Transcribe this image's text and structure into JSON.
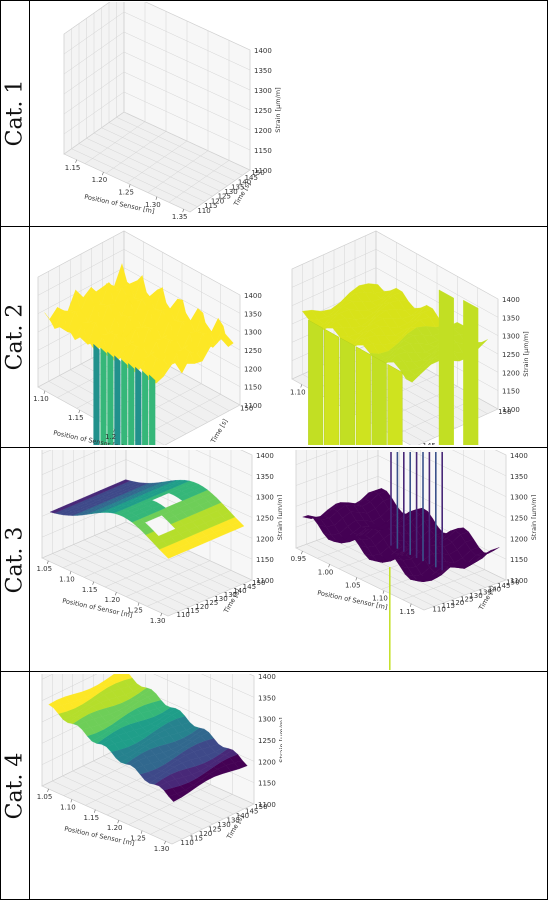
{
  "rows": [
    {
      "label": "Cat. 1"
    },
    {
      "label": "Cat. 2"
    },
    {
      "label": "Cat. 3"
    },
    {
      "label": "Cat. 4"
    }
  ],
  "colors": {
    "yellow": "#fde725",
    "green": "#35b779",
    "teal": "#21918c",
    "blue": "#31688e",
    "purple": "#440154",
    "lime": "#c2df23"
  },
  "chart_data": [
    {
      "id": "cat1",
      "type": "surface3d",
      "xlabel": "Position of Sensor [m]",
      "ylabel": "Time [s]",
      "zlabel": "Strain [µm/m]",
      "xticks": [
        "1.15",
        "1.20",
        "1.25",
        "1.30",
        "1.35"
      ],
      "yticks": [
        "110",
        "115",
        "120",
        "125",
        "130",
        "135",
        "140",
        "145",
        "150"
      ],
      "zticks": [
        "1100",
        "1150",
        "1200",
        "1250",
        "1300",
        "1350",
        "1400"
      ],
      "zlim": [
        1100,
        1400
      ],
      "surface": "empty"
    },
    {
      "id": "cat2a",
      "type": "surface3d",
      "xlabel": "Position of Sensor [m]",
      "ylabel": "Time [s]",
      "zlabel": "",
      "xticks": [
        "1.10",
        "1.15",
        "1.2"
      ],
      "yticks": [
        "140",
        "150"
      ],
      "zticks": [
        "1100",
        "1150",
        "1200",
        "1250",
        "1300",
        "1350",
        "1400"
      ],
      "zlim": [
        1100,
        1400
      ],
      "surface": "noisy plateau ~1300 with vertical drops"
    },
    {
      "id": "cat2b",
      "type": "surface3d",
      "xlabel": "",
      "ylabel": "",
      "zlabel": "Strain [µm/m]",
      "xticks": [
        "1.10"
      ],
      "yticks": [
        "145",
        "150"
      ],
      "zticks": [
        "1100",
        "1150",
        "1200",
        "1250",
        "1300",
        "1350",
        "1400"
      ],
      "zlim": [
        1100,
        1400
      ],
      "surface": "plateau ~1280 with vertical walls"
    },
    {
      "id": "cat3a",
      "type": "surface3d",
      "xlabel": "Position of Sensor [m]",
      "ylabel": "Time [s]",
      "zlabel": "Strain [µm/m]",
      "xticks": [
        "1.05",
        "1.10",
        "1.15",
        "1.20",
        "1.25",
        "1.30"
      ],
      "yticks": [
        "110",
        "115",
        "120",
        "125",
        "130",
        "135",
        "140",
        "145",
        "150"
      ],
      "zticks": [
        "1100",
        "1150",
        "1200",
        "1250",
        "1300",
        "1350",
        "1400"
      ],
      "zlim": [
        1100,
        1400
      ],
      "surface": "smooth dome peaking ~1280 near x=1.20"
    },
    {
      "id": "cat3b",
      "type": "surface3d",
      "xlabel": "Position of Sensor [m]",
      "ylabel": "Time [s]",
      "zlabel": "Strain [µm/m]",
      "xticks": [
        "0.95",
        "1.00",
        "1.05",
        "1.10",
        "1.15"
      ],
      "yticks": [
        "110",
        "115",
        "120",
        "125",
        "130",
        "135",
        "140",
        "145",
        "150"
      ],
      "zticks": [
        "1100",
        "1150",
        "1200",
        "1250",
        "1300",
        "1350",
        "1400"
      ],
      "zlim": [
        1100,
        1400
      ],
      "surface": "low flat surface ~1150 with spikes above 1400"
    },
    {
      "id": "cat4",
      "type": "surface3d",
      "xlabel": "Position of Sensor [m]",
      "ylabel": "Time [s]",
      "zlabel": "Strain [µm/m]",
      "xticks": [
        "1.05",
        "1.10",
        "1.15",
        "1.20",
        "1.25",
        "1.30"
      ],
      "yticks": [
        "110",
        "115",
        "120",
        "125",
        "130",
        "135",
        "140",
        "145",
        "150"
      ],
      "zticks": [
        "1100",
        "1150",
        "1200",
        "1250",
        "1300",
        "1350",
        "1400"
      ],
      "zlim": [
        1100,
        1400
      ],
      "surface": "tilted surface from ~1300 (left) to ~1200 (right)"
    }
  ]
}
